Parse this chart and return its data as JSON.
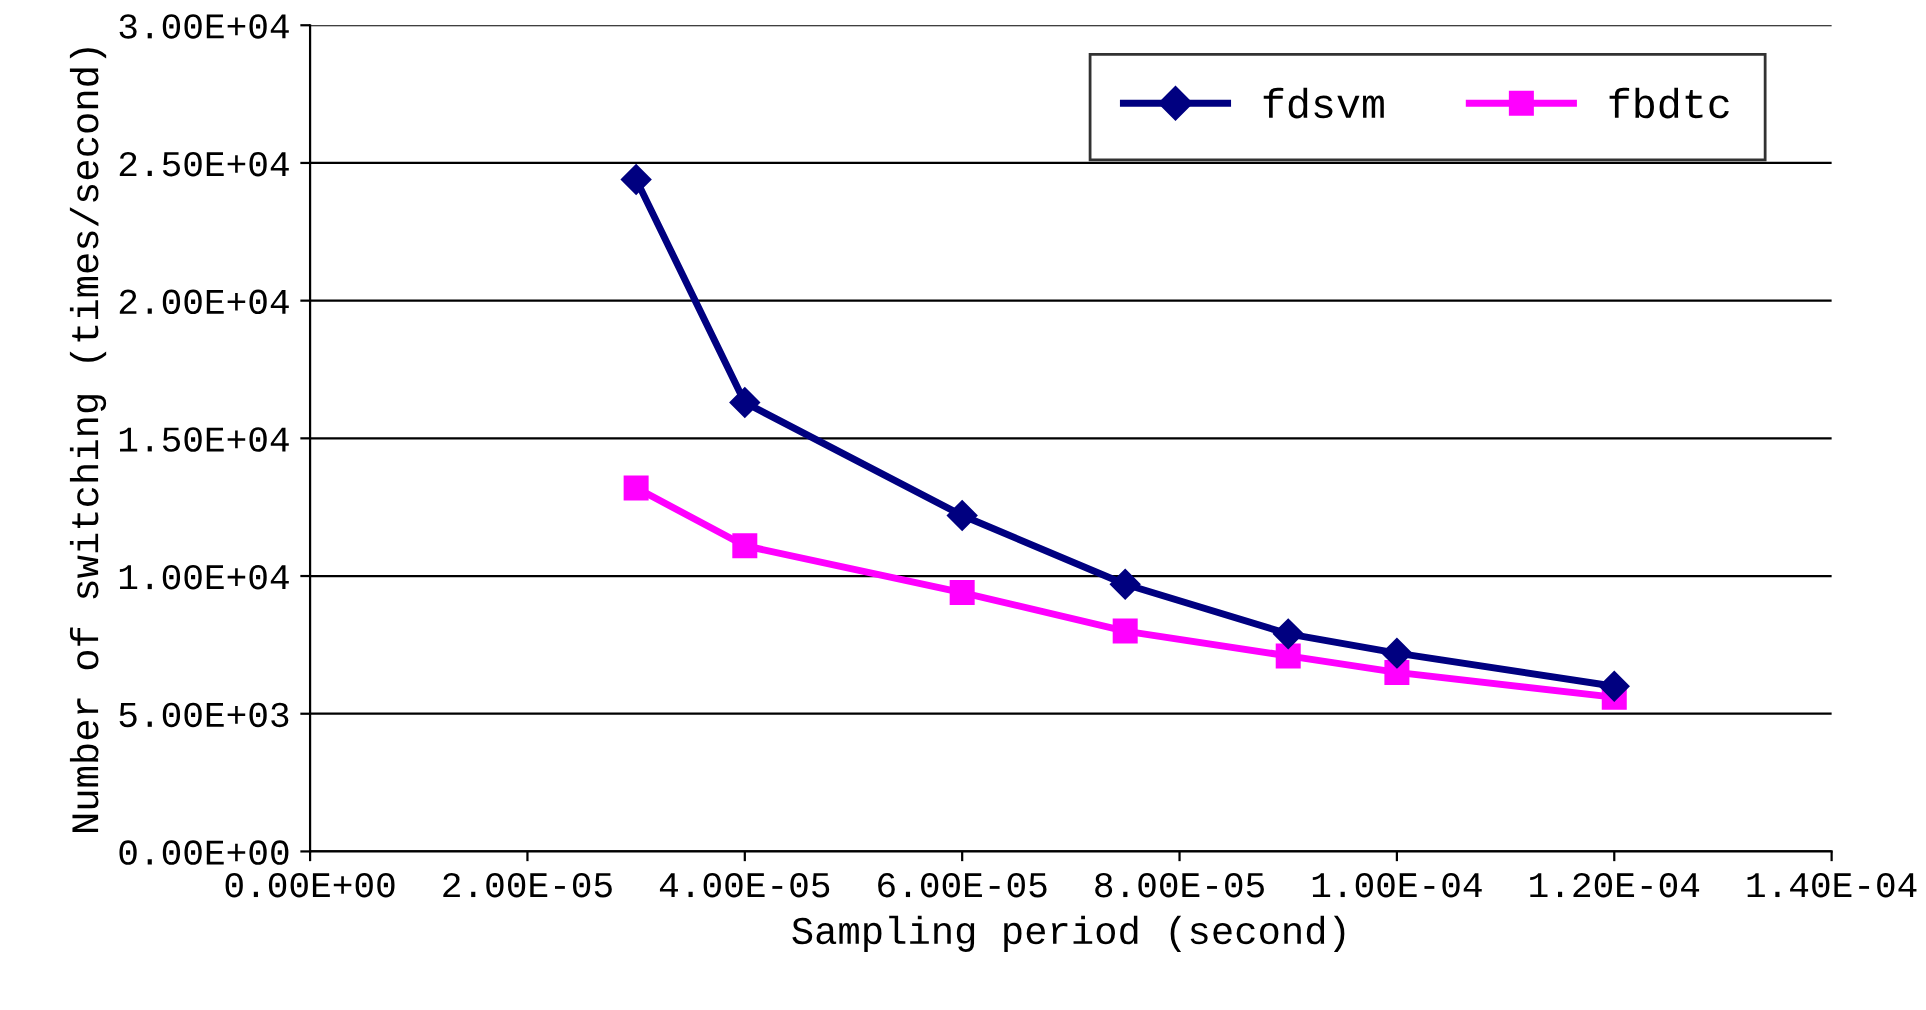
{
  "chart_data": {
    "type": "line",
    "xlabel": "Sampling period (second)",
    "ylabel": "Number of switching (times/second)",
    "x": [
      3e-05,
      4e-05,
      6e-05,
      7.5e-05,
      9e-05,
      0.0001,
      0.00012
    ],
    "series": [
      {
        "name": "fdsvm",
        "color": "#000080",
        "marker": "diamond",
        "values": [
          24400,
          16300,
          12200,
          9700,
          7900,
          7200,
          6000
        ]
      },
      {
        "name": "fbdtc",
        "color": "#ff00ff",
        "marker": "square",
        "values": [
          13200,
          11100,
          9400,
          8000,
          7100,
          6500,
          5600
        ]
      }
    ],
    "xlim": [
      0,
      0.00014
    ],
    "xticks": [
      {
        "value": 0,
        "label": "0.00E+00"
      },
      {
        "value": 2e-05,
        "label": "2.00E-05"
      },
      {
        "value": 4e-05,
        "label": "4.00E-05"
      },
      {
        "value": 6e-05,
        "label": "6.00E-05"
      },
      {
        "value": 8e-05,
        "label": "8.00E-05"
      },
      {
        "value": 0.0001,
        "label": "1.00E-04"
      },
      {
        "value": 0.00012,
        "label": "1.20E-04"
      },
      {
        "value": 0.00014,
        "label": "1.40E-04"
      }
    ],
    "ylim": [
      0,
      30000
    ],
    "yticks": [
      {
        "value": 0,
        "label": "0.00E+00"
      },
      {
        "value": 5000,
        "label": "5.00E+03"
      },
      {
        "value": 10000,
        "label": "1.00E+04"
      },
      {
        "value": 15000,
        "label": "1.50E+04"
      },
      {
        "value": 20000,
        "label": "2.00E+04"
      },
      {
        "value": 25000,
        "label": "2.50E+04"
      },
      {
        "value": 30000,
        "label": "3.00E+04"
      }
    ],
    "grid": "y",
    "legend": "top right",
    "line_style": "solid"
  }
}
